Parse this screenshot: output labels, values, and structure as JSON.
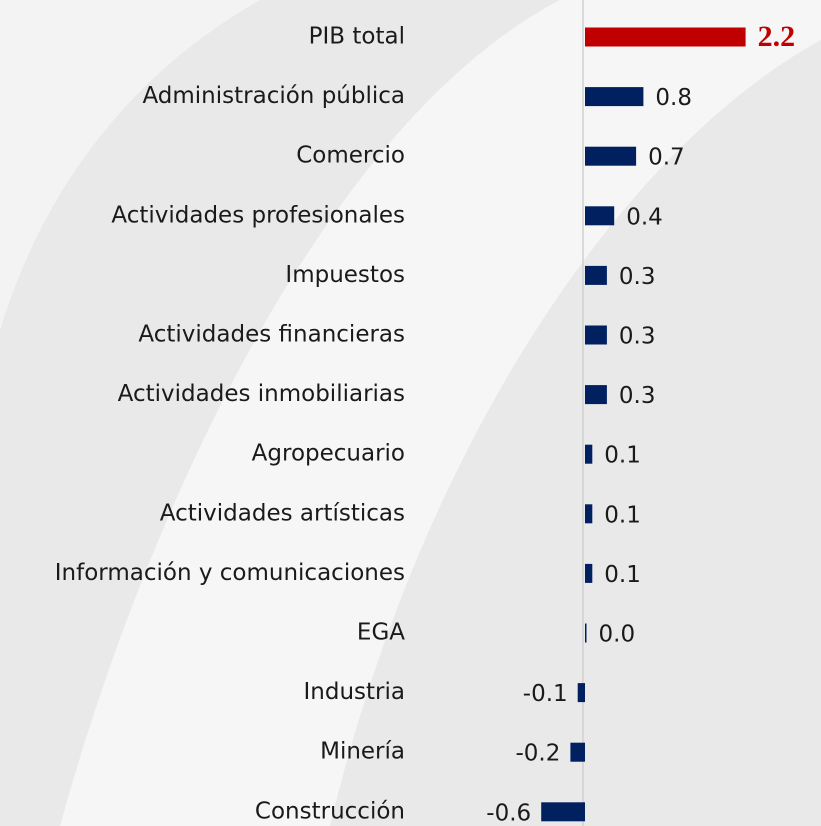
{
  "chart_data": {
    "type": "barh",
    "categories": [
      "PIB total",
      "Administración pública",
      "Comercio",
      "Actividades profesionales",
      "Impuestos",
      "Actividades financieras",
      "Actividades inmobiliarias",
      "Agropecuario",
      "Actividades artísticas",
      "Información y comunicaciones",
      "EGA",
      "Industria",
      "Minería",
      "Construcción"
    ],
    "values": [
      2.2,
      0.8,
      0.7,
      0.4,
      0.3,
      0.3,
      0.3,
      0.1,
      0.1,
      0.1,
      0.0,
      -0.1,
      -0.2,
      -0.6
    ],
    "value_labels": [
      "2.2",
      "0.8",
      "0.7",
      "0.4",
      "0.3",
      "0.3",
      "0.3",
      "0.1",
      "0.1",
      "0.1",
      "0.0",
      "-0.1",
      "-0.2",
      "-0.6"
    ],
    "colors": [
      "#c00000",
      "#002060",
      "#002060",
      "#002060",
      "#002060",
      "#002060",
      "#002060",
      "#002060",
      "#002060",
      "#002060",
      "#002060",
      "#002060",
      "#002060",
      "#002060"
    ]
  }
}
